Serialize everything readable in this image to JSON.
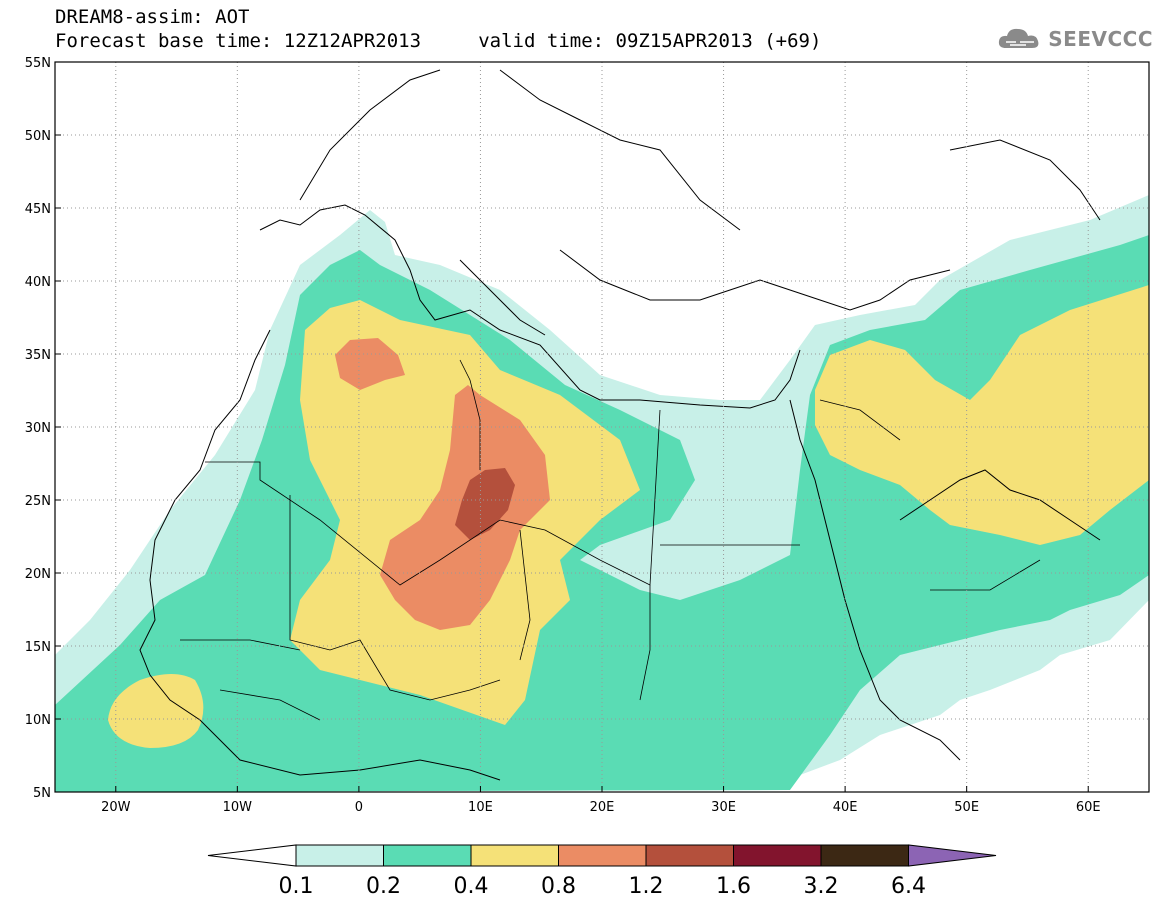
{
  "header": {
    "title_line1": "DREAM8-assim: AOT",
    "title_line2": "Forecast base time: 12Z12APR2013     valid time: 09Z15APR2013 (+69)",
    "logo_text": "SEEVCCC"
  },
  "map": {
    "lat_labels": [
      "55N",
      "50N",
      "45N",
      "40N",
      "35N",
      "30N",
      "25N",
      "20N",
      "15N",
      "10N",
      "5N"
    ],
    "lon_labels": [
      "20W",
      "10W",
      "0",
      "10E",
      "20E",
      "30E",
      "40E",
      "50E",
      "60E"
    ],
    "lat_range": [
      5,
      55
    ],
    "lon_range": [
      -25,
      65
    ],
    "grid": true
  },
  "colorbar": {
    "labels": [
      "0.1",
      "0.2",
      "0.4",
      "0.8",
      "1.2",
      "1.6",
      "3.2",
      "6.4"
    ],
    "colors": [
      "#ffffff",
      "#c8f0e8",
      "#5adcb4",
      "#f5e178",
      "#eb8c64",
      "#b4503c",
      "#82142d",
      "#3c2814",
      "#8c64b4"
    ]
  }
}
